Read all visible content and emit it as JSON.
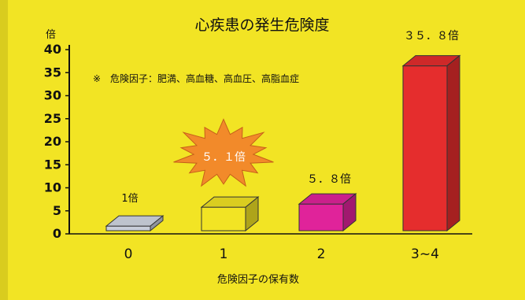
{
  "chart_data": {
    "type": "bar",
    "title": "心疾患の発生危険度",
    "ylabel": "倍",
    "xlabel": "危険因子の保有数",
    "note": "※　危険因子：肥満、高血糖、高血圧、高脂血症",
    "categories": [
      "0",
      "1",
      "2",
      "3~4"
    ],
    "values": [
      1,
      5.1,
      5.8,
      35.8
    ],
    "data_labels": [
      "1倍",
      "５．１倍",
      "５．８倍",
      "３５．８倍"
    ],
    "ylim": [
      0,
      40
    ],
    "yticks": [
      0,
      5,
      10,
      15,
      20,
      25,
      30,
      35,
      40
    ],
    "grid": false,
    "legend": "none",
    "colors": {
      "background": "#f2e424",
      "bar_0": "#c8cdd8",
      "bar_1": "#f2e424",
      "bar_2": "#e0239a",
      "bar_3": "#e52d2d",
      "burst": "#f28a2a"
    }
  }
}
